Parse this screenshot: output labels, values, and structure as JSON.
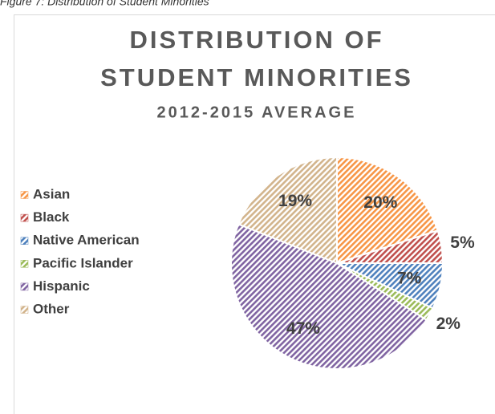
{
  "caption": "Figure 7: Distribution of Student Minorities",
  "chart_data": {
    "type": "pie",
    "title": "DISTRIBUTION OF STUDENT MINORITIES",
    "title_lines": [
      "DISTRIBUTION OF",
      "STUDENT MINORITIES"
    ],
    "subtitle": "2012-2015 AVERAGE",
    "categories": [
      "Asian",
      "Black",
      "Native American",
      "Pacific Islander",
      "Hispanic",
      "Other"
    ],
    "values": [
      20,
      5,
      7,
      2,
      47,
      19
    ],
    "value_labels": [
      "20%",
      "5%",
      "7%",
      "2%",
      "47%",
      "19%"
    ],
    "colors": [
      "#f79646",
      "#c0504d",
      "#4f81bd",
      "#9bbb59",
      "#8064a2",
      "#d2b48c"
    ],
    "legend": "left"
  }
}
